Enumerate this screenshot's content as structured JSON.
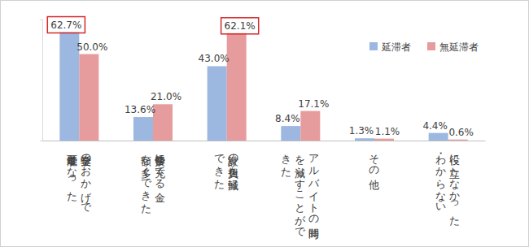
{
  "chart_data": {
    "type": "bar",
    "categories": [
      "奨学金のおかげで進学可能となった",
      "修学費に充てる金額を多くできた",
      "家計の負担を軽減できた",
      "アルバイトの時間を減らすことができた",
      "その他",
      "役に立たなかった・わからない"
    ],
    "series": [
      {
        "name": "延滞者",
        "color": "#9cb7e0",
        "values": [
          62.7,
          13.6,
          43.0,
          8.4,
          1.3,
          4.4
        ],
        "value_labels": [
          "62.7%",
          "13.6%",
          "43.0%",
          "8.4%",
          "1.3%",
          "4.4%"
        ]
      },
      {
        "name": "無延滞者",
        "color": "#e69c9c",
        "values": [
          50.0,
          21.0,
          62.1,
          17.1,
          1.1,
          0.6
        ],
        "value_labels": [
          "50.0%",
          "21.0%",
          "62.1%",
          "17.1%",
          "1.1%",
          "0.6%"
        ]
      }
    ],
    "ylim": [
      0,
      70
    ],
    "yticks": [
      0,
      70
    ],
    "data_labels": true,
    "legend": "upper right",
    "tick_labels": false,
    "grid": false
  }
}
